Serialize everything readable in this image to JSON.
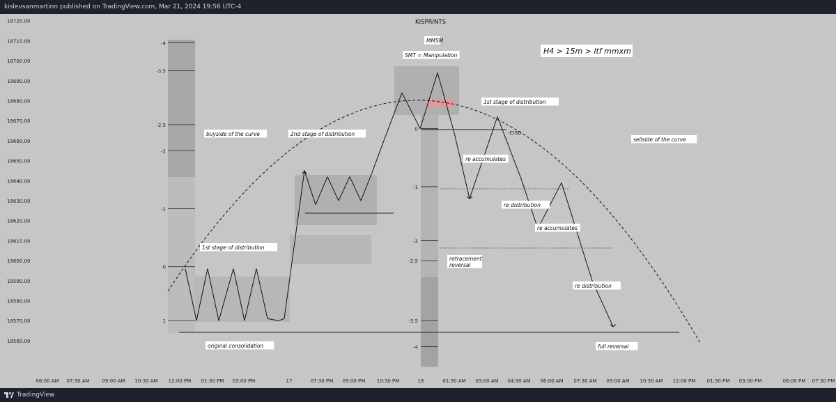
{
  "header": {
    "publisher_line": "kislevsanmartinn published on TradingView.com, Mar 21, 2024 19:56 UTC-4"
  },
  "footer": {
    "brand": "TradingView"
  },
  "colors": {
    "background": "#c6c6c6",
    "frame": "#1e222d",
    "zone": "#a9a9a9",
    "line": "#111111",
    "red_zone": "#e7959a"
  },
  "chart_data": {
    "type": "line",
    "title": "KISPRINTS",
    "ylim": [
      18553,
      18722
    ],
    "y_ticks": [
      "18720.00",
      "18710.00",
      "18700.00",
      "18690.00",
      "18680.00",
      "18670.00",
      "18660.00",
      "18650.00",
      "18640.00",
      "18630.00",
      "18620.00",
      "18610.00",
      "18600.00",
      "18590.00",
      "18580.00",
      "18570.00",
      "18560.00"
    ],
    "x_ticks": [
      "06:00 AM",
      "07:30 AM",
      "09:00 AM",
      "10:30 AM",
      "12:00 PM",
      "01:30 PM",
      "03:00 PM",
      "17",
      "07:30 PM",
      "09:00 PM",
      "10:30 PM",
      "18",
      "01:30 AM",
      "03:00 AM",
      "04:30 AM",
      "06:00 AM",
      "07:30 AM",
      "09:00 AM",
      "10:30 AM",
      "12:00 PM",
      "01:30 PM",
      "03:00 PM",
      "06:00 PM",
      "07:30 PM"
    ],
    "series": [
      {
        "points": [
          [
            266,
            18596
          ],
          [
            282,
            18570
          ],
          [
            298,
            18596
          ],
          [
            314,
            18570
          ],
          [
            335,
            18596
          ],
          [
            351,
            18570
          ],
          [
            368,
            18596
          ],
          [
            384,
            18571
          ],
          [
            400,
            18570
          ],
          [
            408,
            18571
          ],
          [
            437,
            18645
          ],
          [
            453,
            18628
          ],
          [
            470,
            18642
          ],
          [
            486,
            18630
          ],
          [
            502,
            18642
          ],
          [
            518,
            18630
          ],
          [
            534,
            18644
          ],
          [
            551,
            18660
          ],
          [
            577,
            18684
          ],
          [
            603,
            18666
          ],
          [
            628,
            18694
          ],
          [
            652,
            18664
          ],
          [
            674,
            18631
          ],
          [
            714,
            18672
          ],
          [
            748,
            18641
          ],
          [
            772,
            18616
          ],
          [
            806,
            18639
          ],
          [
            850,
            18590
          ],
          [
            880,
            18567
          ]
        ]
      }
    ],
    "fib_left": {
      "labels": [
        "-4",
        "-3.5",
        "-2.5",
        "-2",
        "-1",
        "0",
        "1"
      ],
      "values": [
        18709,
        18695,
        18668,
        18655,
        18626,
        18597,
        18570
      ]
    },
    "fib_right": {
      "labels": [
        "0",
        "-1",
        "-2",
        "-2.5",
        "-3.5",
        "-4"
      ],
      "values": [
        18666,
        18637,
        18610,
        18600,
        18570,
        18557
      ]
    },
    "annotations": [
      "buyside of the curve",
      "2nd stage of distribution",
      "1st stage of distribution",
      "original consolidation",
      "MMSM",
      "SMT = Manipulation",
      "1st stage of distribution",
      "-CISD",
      "re accumulates",
      "re distribution",
      "re accumulates",
      "retracement",
      "reversal",
      "re distribution",
      "full reversal",
      "sellside of the curve",
      "H4 > 15m > ltf mmxm"
    ]
  }
}
